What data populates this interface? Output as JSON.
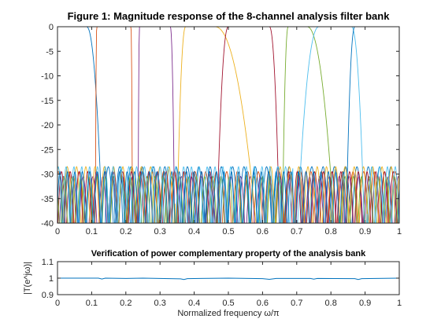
{
  "chart_data": [
    {
      "type": "line",
      "title": "Figure 1: Magnitude response of the 8-channel analysis filter bank",
      "xlim": [
        0,
        1
      ],
      "ylim": [
        -40,
        0
      ],
      "xticks": [
        0,
        0.1,
        0.2,
        0.3,
        0.4,
        0.5,
        0.6,
        0.7,
        0.8,
        0.9,
        1
      ],
      "xtick_labels": [
        "0",
        "0.1",
        "0.2",
        "0.3",
        "0.4",
        "0.5",
        "0.6",
        "0.7",
        "0.8",
        "0.9",
        "1"
      ],
      "yticks": [
        0,
        -5,
        -10,
        -15,
        -20,
        -25,
        -30,
        -35,
        -40
      ],
      "ytick_labels": [
        "0",
        "-5",
        "-10",
        "-15",
        "-20",
        "-25",
        "-30",
        "-35",
        "-40"
      ],
      "grid": false,
      "series": [
        {
          "color": "#0072BD",
          "passband": [
            0.0,
            0.085
          ],
          "edges": [
            0.085,
            0.14
          ]
        },
        {
          "color": "#D95319",
          "passband": [
            0.115,
            0.215
          ],
          "edges": [
            0.11,
            0.22
          ]
        },
        {
          "color": "#7E2F8E",
          "passband": [
            0.24,
            0.33
          ],
          "edges": [
            0.235,
            0.345
          ]
        },
        {
          "color": "#EDB120",
          "passband": [
            0.375,
            0.46
          ],
          "edges": [
            0.345,
            0.605
          ]
        },
        {
          "color": "#A2142F",
          "passband": [
            0.5,
            0.62
          ],
          "edges": [
            0.46,
            0.655
          ]
        },
        {
          "color": "#77AC30",
          "passband": [
            0.675,
            0.73
          ],
          "edges": [
            0.655,
            0.825
          ]
        },
        {
          "color": "#4DBEEE",
          "passband": [
            0.765,
            0.86
          ],
          "edges": [
            0.69,
            0.905
          ]
        },
        {
          "color": "#0072BD",
          "passband": [
            0.87,
            1.0
          ],
          "edges": [
            0.84,
            1.0
          ]
        }
      ],
      "stopband_floor_db": -40,
      "stopband_ripple_peak_db": -28.5
    },
    {
      "type": "line",
      "title": "Verification of power complementary property of the analysis bank",
      "xlabel": "Normalized frequency ω/π",
      "ylabel": "|T(e^jω)|",
      "xlim": [
        0,
        1
      ],
      "ylim": [
        0.9,
        1.1
      ],
      "xticks": [
        0,
        0.1,
        0.2,
        0.3,
        0.4,
        0.5,
        0.6,
        0.7,
        0.8,
        0.9,
        1
      ],
      "xtick_labels": [
        "0",
        "0.1",
        "0.2",
        "0.3",
        "0.4",
        "0.5",
        "0.6",
        "0.7",
        "0.8",
        "0.9",
        "1"
      ],
      "yticks": [
        1.1,
        1,
        0.9
      ],
      "ytick_labels": [
        "1.1",
        "1",
        "0.9"
      ],
      "series": [
        {
          "color": "#0072BD",
          "x": [
            0,
            0.12,
            0.13,
            0.14,
            0.2,
            0.25,
            0.36,
            0.37,
            0.38,
            0.5,
            0.6,
            0.62,
            0.64,
            0.74,
            0.75,
            0.76,
            0.87,
            0.88,
            0.89,
            1.0
          ],
          "values": [
            1.0,
            1.0,
            0.995,
            1.0,
            0.998,
            1.0,
            0.996,
            0.992,
            0.997,
            1.0,
            0.997,
            0.993,
            0.998,
            0.998,
            0.994,
            0.998,
            0.997,
            0.992,
            0.997,
            1.0
          ]
        }
      ]
    }
  ],
  "colors": {
    "axis": "#262626",
    "background": "#ffffff"
  }
}
